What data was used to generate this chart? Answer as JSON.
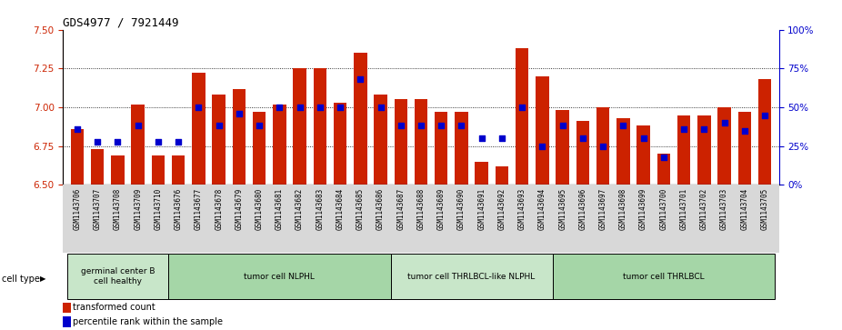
{
  "title": "GDS4977 / 7921449",
  "samples": [
    "GSM1143706",
    "GSM1143707",
    "GSM1143708",
    "GSM1143709",
    "GSM1143710",
    "GSM1143676",
    "GSM1143677",
    "GSM1143678",
    "GSM1143679",
    "GSM1143680",
    "GSM1143681",
    "GSM1143682",
    "GSM1143683",
    "GSM1143684",
    "GSM1143685",
    "GSM1143686",
    "GSM1143687",
    "GSM1143688",
    "GSM1143689",
    "GSM1143690",
    "GSM1143691",
    "GSM1143692",
    "GSM1143693",
    "GSM1143694",
    "GSM1143695",
    "GSM1143696",
    "GSM1143697",
    "GSM1143698",
    "GSM1143699",
    "GSM1143700",
    "GSM1143701",
    "GSM1143702",
    "GSM1143703",
    "GSM1143704",
    "GSM1143705"
  ],
  "red_values": [
    6.86,
    6.73,
    6.69,
    7.02,
    6.69,
    6.69,
    7.22,
    7.08,
    7.12,
    6.97,
    7.02,
    7.25,
    7.25,
    7.03,
    7.35,
    7.08,
    7.05,
    7.05,
    6.97,
    6.97,
    6.65,
    6.62,
    7.38,
    7.2,
    6.98,
    6.91,
    7.0,
    6.93,
    6.88,
    6.7,
    6.95,
    6.95,
    7.0,
    6.97,
    7.18
  ],
  "blue_values_pct": [
    36,
    28,
    28,
    38,
    28,
    28,
    50,
    38,
    46,
    38,
    50,
    50,
    50,
    50,
    68,
    50,
    38,
    38,
    38,
    38,
    30,
    30,
    50,
    25,
    38,
    30,
    25,
    38,
    30,
    18,
    36,
    36,
    40,
    35,
    45
  ],
  "cell_type_groups": [
    {
      "label": "germinal center B\ncell healthy",
      "start": 0,
      "end": 5,
      "color": "#c8e6c9"
    },
    {
      "label": "tumor cell NLPHL",
      "start": 5,
      "end": 16,
      "color": "#a5d6a7"
    },
    {
      "label": "tumor cell THRLBCL-like NLPHL",
      "start": 16,
      "end": 24,
      "color": "#c8e6c9"
    },
    {
      "label": "tumor cell THRLBCL",
      "start": 24,
      "end": 35,
      "color": "#a5d6a7"
    }
  ],
  "ylim_left": [
    6.5,
    7.5
  ],
  "ylim_right": [
    0,
    100
  ],
  "yticks_left": [
    6.5,
    6.75,
    7.0,
    7.25,
    7.5
  ],
  "yticks_right": [
    0,
    25,
    50,
    75,
    100
  ],
  "bar_color": "#cc2200",
  "dot_color": "#0000cc",
  "bar_bottom": 6.5,
  "legend_items": [
    "transformed count",
    "percentile rank within the sample"
  ],
  "cell_type_label": "cell type"
}
